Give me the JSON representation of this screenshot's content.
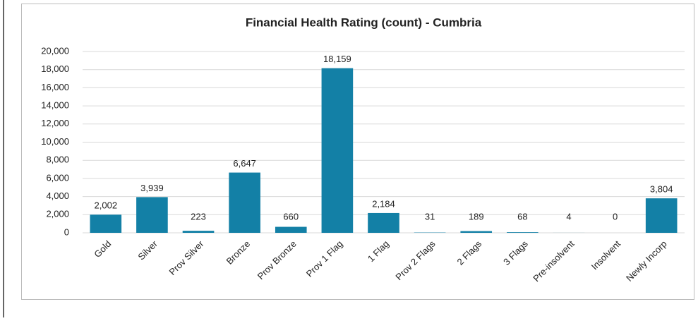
{
  "chart_data": {
    "type": "bar",
    "title": "Financial Health Rating (count) - Cumbria",
    "categories": [
      "Gold",
      "Silver",
      "Prov Silver",
      "Bronze",
      "Prov Bronze",
      "Prov 1 Flag",
      "1 Flag",
      "Prov 2 Flags",
      "2 Flags",
      "3 Flags",
      "Pre-insolvent",
      "Insolvent",
      "Newly Incorp"
    ],
    "values": [
      2002,
      3939,
      223,
      6647,
      660,
      18159,
      2184,
      31,
      189,
      68,
      4,
      0,
      3804
    ],
    "value_labels": [
      "2,002",
      "3,939",
      "223",
      "6,647",
      "660",
      "18,159",
      "2,184",
      "31",
      "189",
      "68",
      "4",
      "0",
      "3,804"
    ],
    "color": "#1380a6",
    "ylim": [
      0,
      20000
    ],
    "yticks": [
      0,
      {
        "value": 2000,
        "label": "2,000"
      },
      {
        "value": 4000,
        "label": "4,000"
      },
      {
        "value": 6000,
        "label": "6,000"
      },
      {
        "value": 8000,
        "label": "8,000"
      },
      {
        "value": 10000,
        "label": "10,000"
      },
      {
        "value": 12000,
        "label": "12,000"
      },
      {
        "value": 14000,
        "label": "14,000"
      },
      {
        "value": 16000,
        "label": "16,000"
      },
      {
        "value": 18000,
        "label": "18,000"
      },
      {
        "value": 20000,
        "label": "20,000"
      }
    ],
    "grid": true
  }
}
